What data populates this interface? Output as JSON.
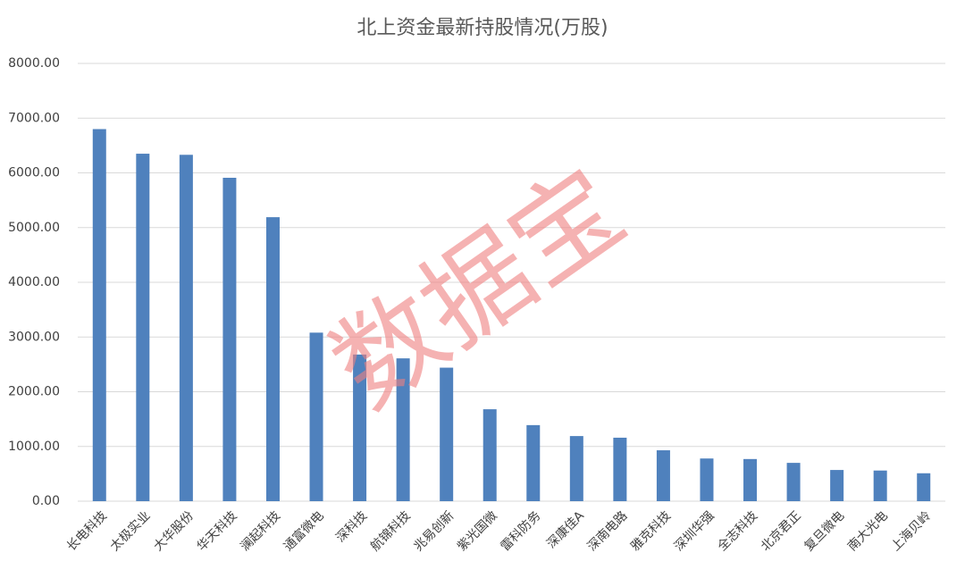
{
  "chart_data": {
    "type": "bar",
    "title": "北上资金最新持股情况(万股)",
    "categories": [
      "长电科技",
      "太极实业",
      "大华股份",
      "华天科技",
      "澜起科技",
      "通富微电",
      "深科技",
      "航锦科技",
      "兆易创新",
      "紫光国微",
      "雷科防务",
      "深康佳A",
      "深南电路",
      "雅克科技",
      "深圳华强",
      "全志科技",
      "北京君正",
      "复旦微电",
      "南大光电",
      "上海贝岭"
    ],
    "values": [
      6800,
      6350,
      6330,
      5910,
      5190,
      3080,
      2680,
      2610,
      2440,
      1680,
      1390,
      1190,
      1160,
      930,
      780,
      770,
      700,
      570,
      560,
      510
    ],
    "color": "#4f81bd",
    "ylim": [
      0,
      8000
    ],
    "yticks": [
      {
        "value": 0,
        "label": "0.00"
      },
      {
        "value": 1000,
        "label": "1000.00"
      },
      {
        "value": 2000,
        "label": "2000.00"
      },
      {
        "value": 3000,
        "label": "3000.00"
      },
      {
        "value": 4000,
        "label": "4000.00"
      },
      {
        "value": 5000,
        "label": "5000.00"
      },
      {
        "value": 6000,
        "label": "6000.00"
      },
      {
        "value": 7000,
        "label": "7000.00"
      },
      {
        "value": 8000,
        "label": "8000.00"
      }
    ],
    "grid": true,
    "watermark": "数据宝"
  }
}
